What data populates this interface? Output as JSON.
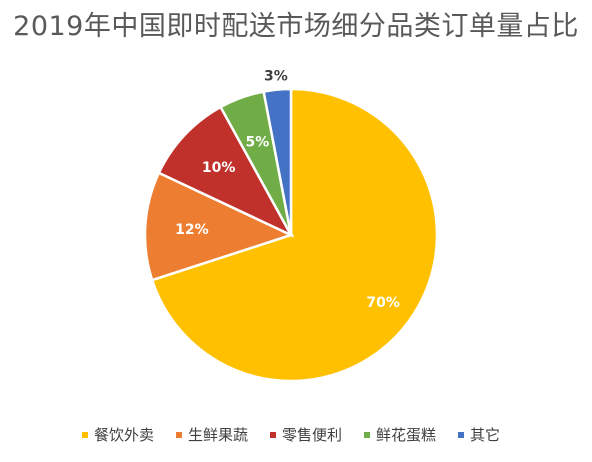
{
  "chart_data": {
    "type": "pie",
    "title": "2019年中国即时配送市场细分品类订单量占比",
    "categories": [
      "餐饮外卖",
      "生鲜果蔬",
      "零售便利",
      "鲜花蛋糕",
      "其它"
    ],
    "values": [
      70,
      12,
      10,
      5,
      3
    ],
    "labels": [
      "70%",
      "12%",
      "10%",
      "5%",
      "3%"
    ],
    "colors": [
      "#FFC000",
      "#ED7D31",
      "#C0312B",
      "#70AD47",
      "#4472C4"
    ],
    "legend_position": "bottom",
    "start": "12-o'clock",
    "direction": "clockwise"
  }
}
